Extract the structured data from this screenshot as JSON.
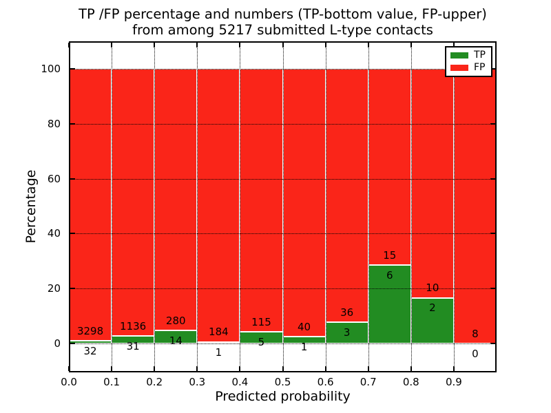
{
  "figure": {
    "title_line1": "TP /FP percentage and numbers (TP-bottom value, FP-upper)",
    "title_line2": "from among 5217 submitted L-type contacts",
    "xlabel": "Predicted probability",
    "ylabel": "Percentage"
  },
  "legend": {
    "items": [
      {
        "label": "TP",
        "color": "#228c22"
      },
      {
        "label": "FP",
        "color": "#fa2519"
      }
    ]
  },
  "chart_data": {
    "type": "bar",
    "subtype": "stacked-100-percent",
    "title": "TP /FP percentage and numbers (TP-bottom value, FP-upper) from among 5217 submitted L-type contacts",
    "xlabel": "Predicted probability",
    "ylabel": "Percentage",
    "total_contacts": 5217,
    "bin_width": 0.1,
    "x_tick_labels": [
      "0.0",
      "0.1",
      "0.2",
      "0.3",
      "0.4",
      "0.5",
      "0.6",
      "0.7",
      "0.8",
      "0.9"
    ],
    "y_ticks": [
      0,
      20,
      40,
      60,
      80,
      100
    ],
    "xlim": [
      0.0,
      1.0
    ],
    "ylim": [
      -10,
      110
    ],
    "grid": "dotted",
    "legend_position": "upper-right",
    "series": [
      {
        "name": "TP",
        "color": "#228c22",
        "counts": [
          32,
          31,
          14,
          1,
          5,
          1,
          3,
          6,
          2,
          0
        ]
      },
      {
        "name": "FP",
        "color": "#fa2519",
        "counts": [
          3298,
          1136,
          280,
          184,
          115,
          40,
          36,
          15,
          10,
          8
        ]
      }
    ],
    "tp_percent": [
      0.96,
      2.66,
      4.76,
      0.54,
      4.17,
      2.44,
      7.69,
      28.57,
      16.67,
      0.0
    ],
    "fp_percent": [
      99.04,
      97.34,
      95.24,
      99.46,
      95.83,
      97.56,
      92.31,
      71.43,
      83.33,
      100.0
    ]
  }
}
